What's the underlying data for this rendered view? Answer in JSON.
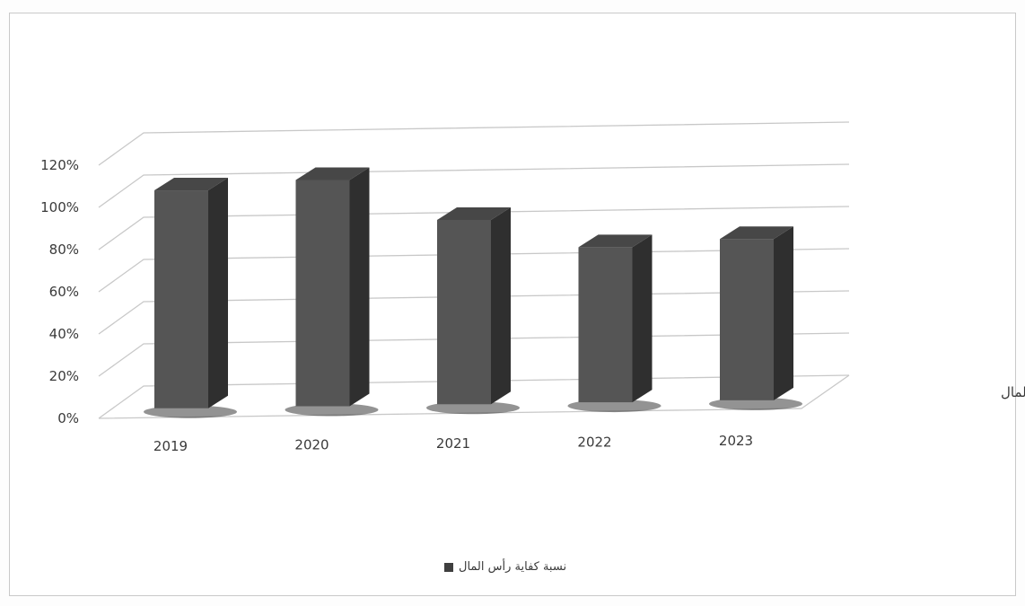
{
  "chart_data": {
    "type": "bar",
    "style": "3d-column",
    "categories": [
      "2019",
      "2020",
      "2021",
      "2022",
      "2023"
    ],
    "series": [
      {
        "name": "نسبة كفاية رأس المال",
        "values": [
          1.04,
          1.08,
          0.88,
          0.74,
          0.77
        ]
      }
    ],
    "yticks": [
      "0%",
      "20%",
      "40%",
      "60%",
      "80%",
      "100%",
      "120%"
    ],
    "ylim": [
      0,
      1.2
    ],
    "depth_axis_label": "نسبة كفاية رأس المال",
    "legend": {
      "position": "bottom",
      "label": "نسبة كفاية رأس المال"
    },
    "grid": true,
    "colors": {
      "bar_front": "#555555",
      "bar_side": "#2f2f2f",
      "bar_top": "#474747",
      "gridline": "#c8c8c8",
      "text": "#3a3a3a"
    }
  }
}
